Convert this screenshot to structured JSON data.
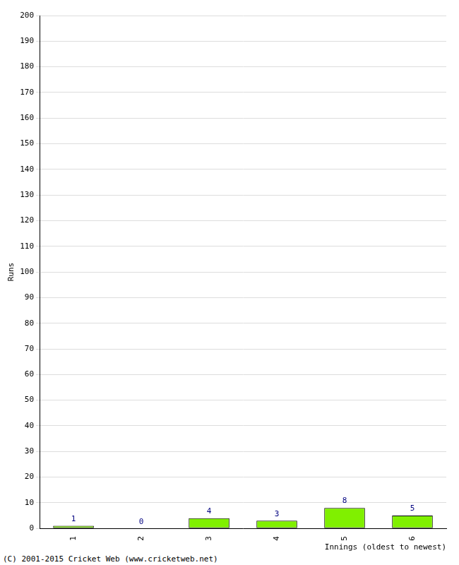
{
  "chart_data": {
    "type": "bar",
    "categories": [
      "1",
      "2",
      "3",
      "4",
      "5",
      "6"
    ],
    "values": [
      1,
      0,
      4,
      3,
      8,
      5
    ],
    "color": "#80f000",
    "y_label": "Runs",
    "x_label": "Innings (oldest to newest)",
    "annotations": [
      "(C) 2001-2015 Cricket Web (www.cricketweb.net)"
    ],
    "ylim": [
      0,
      200
    ],
    "yticks": [
      0,
      10,
      20,
      30,
      40,
      50,
      60,
      70,
      80,
      90,
      100,
      110,
      120,
      130,
      140,
      150,
      160,
      170,
      180,
      190,
      200
    ],
    "grid": true,
    "data_labels": true
  }
}
